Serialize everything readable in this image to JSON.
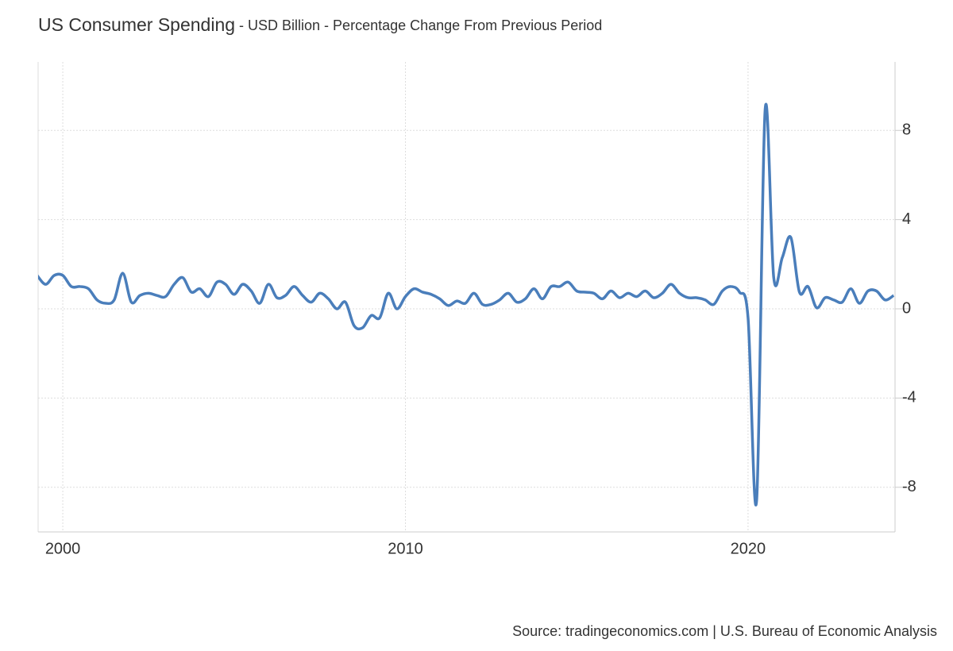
{
  "chart_data": {
    "type": "line",
    "title": "US Consumer Spending",
    "subtitle": " - USD Billion - Percentage Change From Previous Period",
    "source": "Source: tradingeconomics.com | U.S. Bureau of Economic Analysis",
    "x": [
      1999.25,
      1999.5,
      1999.75,
      2000,
      2000.25,
      2000.5,
      2000.75,
      2001,
      2001.25,
      2001.5,
      2001.75,
      2002,
      2002.25,
      2002.5,
      2002.75,
      2003,
      2003.25,
      2003.5,
      2003.75,
      2004,
      2004.25,
      2004.5,
      2004.75,
      2005,
      2005.25,
      2005.5,
      2005.75,
      2006,
      2006.25,
      2006.5,
      2006.75,
      2007,
      2007.25,
      2007.5,
      2007.75,
      2008,
      2008.25,
      2008.5,
      2008.75,
      2009,
      2009.25,
      2009.5,
      2009.75,
      2010,
      2010.25,
      2010.5,
      2010.75,
      2011,
      2011.25,
      2011.5,
      2011.75,
      2012,
      2012.25,
      2012.5,
      2012.75,
      2013,
      2013.25,
      2013.5,
      2013.75,
      2014,
      2014.25,
      2014.5,
      2014.75,
      2015,
      2015.25,
      2015.5,
      2015.75,
      2016,
      2016.25,
      2016.5,
      2016.75,
      2017,
      2017.25,
      2017.5,
      2017.75,
      2018,
      2018.25,
      2018.5,
      2018.75,
      2019,
      2019.25,
      2019.5,
      2019.75,
      2020,
      2020.25,
      2020.5,
      2020.75,
      2021,
      2021.25,
      2021.5,
      2021.75,
      2022,
      2022.25,
      2022.5,
      2022.75,
      2023,
      2023.25,
      2023.5,
      2023.75,
      2024,
      2024.25
    ],
    "series": [
      {
        "name": "Consumer Spending",
        "color": "#4a7ebb",
        "values": [
          1.5,
          1.1,
          1.5,
          1.5,
          1.0,
          1.0,
          0.9,
          0.4,
          0.25,
          0.4,
          1.6,
          0.3,
          0.6,
          0.7,
          0.6,
          0.55,
          1.1,
          1.4,
          0.75,
          0.9,
          0.55,
          1.2,
          1.1,
          0.65,
          1.1,
          0.8,
          0.25,
          1.1,
          0.5,
          0.6,
          1.0,
          0.6,
          0.3,
          0.7,
          0.45,
          0,
          0.3,
          -0.75,
          -0.85,
          -0.3,
          -0.4,
          0.7,
          0,
          0.55,
          0.9,
          0.75,
          0.65,
          0.45,
          0.15,
          0.35,
          0.25,
          0.7,
          0.2,
          0.2,
          0.4,
          0.7,
          0.3,
          0.45,
          0.9,
          0.45,
          1.0,
          1.0,
          1.2,
          0.8,
          0.75,
          0.7,
          0.45,
          0.8,
          0.5,
          0.7,
          0.55,
          0.8,
          0.5,
          0.7,
          1.1,
          0.7,
          0.5,
          0.5,
          0.4,
          0.2,
          0.8,
          1.0,
          0.75,
          -0.4,
          -8.6,
          8.95,
          1.4,
          2.3,
          3.2,
          0.75,
          1.0,
          0.05,
          0.5,
          0.4,
          0.3,
          0.9,
          0.25,
          0.8,
          0.8,
          0.4,
          0.6
        ]
      }
    ],
    "xlim": [
      1999.28,
      2024.29
    ],
    "xticks": [
      2000,
      2010,
      2020
    ],
    "ylim": [
      -10,
      11.07
    ],
    "yticks": [
      -8,
      -4,
      0,
      4,
      8
    ],
    "grid": true
  }
}
